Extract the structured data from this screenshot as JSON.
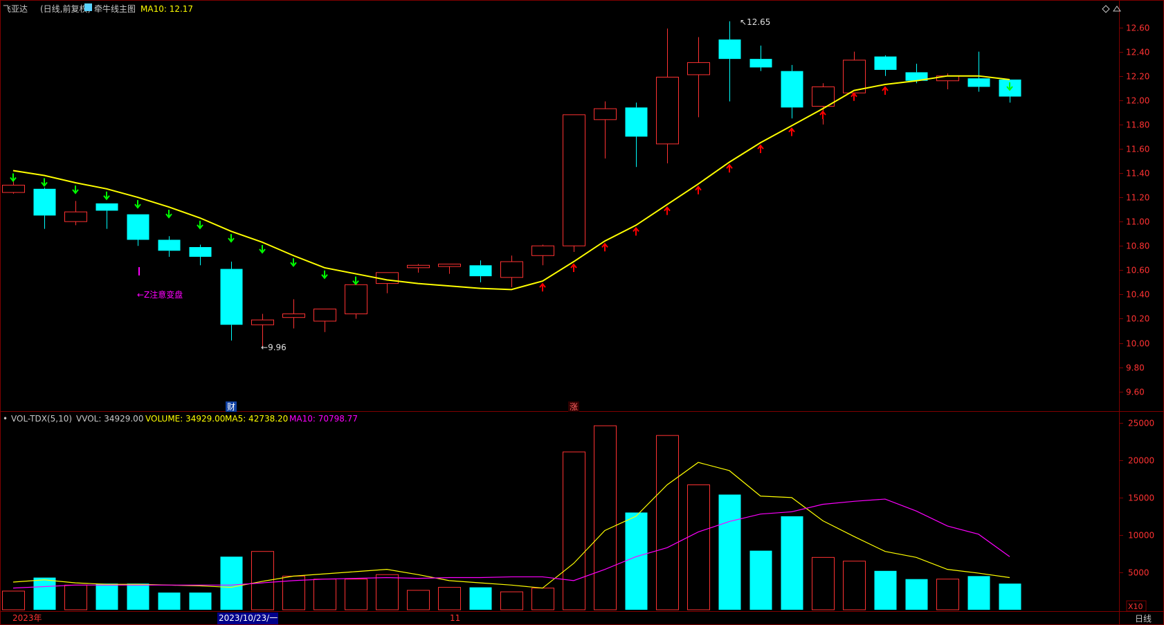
{
  "header": {
    "stock_name": "飞亚达",
    "mode": "(日线,前复权)",
    "indicator_name": "牵牛线主图",
    "ma10_label": "MA10: 12.17"
  },
  "volume_header": {
    "indicator": "VOL-TDX(5,10)",
    "vvol_label": "VVOL: 34929.00",
    "volume_label": "VOLUME: 34929.00",
    "ma5_label": "MA5: 42738.20",
    "ma10_label": "MA10: 70798.77"
  },
  "bottom": {
    "year_label": "2023年",
    "cursor_date": "2023/10/23/一",
    "month_label": "11",
    "period": "日线",
    "x10_label": "X10"
  },
  "annotations": {
    "high_label": "12.65",
    "low_label": "9.96",
    "note_label": "←Z注意变盘",
    "fin_marker": "财",
    "rise_marker": "涨"
  },
  "colors": {
    "up": "#ff3232",
    "down": "#00ffff",
    "ma_line": "#ffff00",
    "vol_ma5": "#ffff00",
    "vol_ma10": "#ff00ff",
    "grid": "#800000",
    "axis_text": "#ff3232",
    "arrow_down": "#00ff00",
    "arrow_up": "#ff0000",
    "note": "#ff00ff"
  },
  "chart_data": [
    {
      "type": "candlestick",
      "title": "牵牛线主图",
      "y_ticks": [
        9.6,
        9.8,
        10.0,
        10.2,
        10.4,
        10.6,
        10.8,
        11.0,
        11.2,
        11.4,
        11.6,
        11.8,
        12.0,
        12.2,
        12.4,
        12.6
      ],
      "ylim": [
        9.45,
        12.7
      ],
      "candles": [
        {
          "o": 11.24,
          "c": 11.3,
          "h": 11.33,
          "l": 11.23
        },
        {
          "o": 11.27,
          "c": 11.05,
          "h": 11.28,
          "l": 10.94
        },
        {
          "o": 11.0,
          "c": 11.08,
          "h": 11.17,
          "l": 10.97
        },
        {
          "o": 11.15,
          "c": 11.09,
          "h": 11.15,
          "l": 10.94
        },
        {
          "o": 11.06,
          "c": 10.85,
          "h": 11.06,
          "l": 10.8
        },
        {
          "o": 10.85,
          "c": 10.76,
          "h": 10.88,
          "l": 10.71
        },
        {
          "o": 10.79,
          "c": 10.71,
          "h": 10.81,
          "l": 10.64
        },
        {
          "o": 10.61,
          "c": 10.15,
          "h": 10.67,
          "l": 10.02
        },
        {
          "o": 10.15,
          "c": 10.19,
          "h": 10.24,
          "l": 9.96
        },
        {
          "o": 10.21,
          "c": 10.24,
          "h": 10.36,
          "l": 10.12
        },
        {
          "o": 10.18,
          "c": 10.28,
          "h": 10.28,
          "l": 10.09
        },
        {
          "o": 10.24,
          "c": 10.48,
          "h": 10.48,
          "l": 10.2
        },
        {
          "o": 10.49,
          "c": 10.58,
          "h": 10.58,
          "l": 10.41
        },
        {
          "o": 10.62,
          "c": 10.64,
          "h": 10.65,
          "l": 10.58
        },
        {
          "o": 10.63,
          "c": 10.65,
          "h": 10.65,
          "l": 10.57
        },
        {
          "o": 10.64,
          "c": 10.55,
          "h": 10.68,
          "l": 10.5
        },
        {
          "o": 10.54,
          "c": 10.67,
          "h": 10.72,
          "l": 10.46
        },
        {
          "o": 10.72,
          "c": 10.8,
          "h": 10.81,
          "l": 10.64
        },
        {
          "o": 10.8,
          "c": 11.88,
          "h": 11.88,
          "l": 10.75
        },
        {
          "o": 11.84,
          "c": 11.93,
          "h": 11.99,
          "l": 11.52
        },
        {
          "o": 11.94,
          "c": 11.7,
          "h": 11.98,
          "l": 11.45
        },
        {
          "o": 11.64,
          "c": 12.19,
          "h": 12.59,
          "l": 11.48
        },
        {
          "o": 12.21,
          "c": 12.31,
          "h": 12.52,
          "l": 11.86
        },
        {
          "o": 12.5,
          "c": 12.34,
          "h": 12.65,
          "l": 11.99
        },
        {
          "o": 12.34,
          "c": 12.27,
          "h": 12.45,
          "l": 12.24
        },
        {
          "o": 12.24,
          "c": 11.94,
          "h": 12.29,
          "l": 11.85
        },
        {
          "o": 11.95,
          "c": 12.11,
          "h": 12.14,
          "l": 11.8
        },
        {
          "o": 12.06,
          "c": 12.33,
          "h": 12.4,
          "l": 12.03
        },
        {
          "o": 12.36,
          "c": 12.25,
          "h": 12.37,
          "l": 12.2
        },
        {
          "o": 12.23,
          "c": 12.16,
          "h": 12.3,
          "l": 12.14
        },
        {
          "o": 12.16,
          "c": 12.2,
          "h": 12.22,
          "l": 12.09
        },
        {
          "o": 12.18,
          "c": 12.11,
          "h": 12.4,
          "l": 12.07
        },
        {
          "o": 12.17,
          "c": 12.03,
          "h": 12.17,
          "l": 11.98
        }
      ],
      "ma10": [
        11.42,
        11.38,
        11.32,
        11.27,
        11.2,
        11.12,
        11.03,
        10.92,
        10.83,
        10.72,
        10.62,
        10.57,
        10.52,
        10.49,
        10.47,
        10.45,
        10.44,
        10.51,
        10.67,
        10.84,
        10.97,
        11.14,
        11.31,
        11.49,
        11.65,
        11.79,
        11.93,
        12.08,
        12.13,
        12.16,
        12.2,
        12.2,
        12.17
      ],
      "signals": [
        "down",
        "down",
        "down",
        "down",
        "down",
        "down",
        "down",
        "down",
        "down",
        "down",
        "down",
        "down",
        "none",
        "none",
        "none",
        "none",
        "none",
        "up",
        "up",
        "up",
        "up",
        "up",
        "up",
        "up",
        "up",
        "up",
        "up",
        "up",
        "up",
        "none",
        "none",
        "none",
        "down"
      ]
    },
    {
      "type": "bar",
      "title": "VOL-TDX(5,10)",
      "y_ticks": [
        5000,
        10000,
        15000,
        20000,
        25000
      ],
      "ylim": [
        0,
        26000
      ],
      "volumes": [
        2500,
        4300,
        3300,
        3500,
        3500,
        2300,
        2300,
        7100,
        7800,
        4500,
        4100,
        4100,
        4700,
        2600,
        3000,
        3000,
        2400,
        2900,
        21100,
        24600,
        13000,
        23300,
        16700,
        15400,
        7900,
        12500,
        7000,
        6500,
        5200,
        4100,
        4100,
        4500,
        3500
      ],
      "ma5": [
        3700,
        4000,
        3600,
        3400,
        3400,
        3300,
        3200,
        3000,
        3800,
        4500,
        4800,
        5100,
        5400,
        4700,
        3900,
        3600,
        3300,
        2900,
        6200,
        10600,
        12500,
        16700,
        19700,
        18600,
        15200,
        15000,
        11900,
        9800,
        7800,
        7000,
        5400,
        4900,
        4300
      ],
      "ma10": [
        2900,
        3100,
        3300,
        3300,
        3300,
        3300,
        3300,
        3300,
        3600,
        3900,
        4100,
        4200,
        4300,
        4200,
        4300,
        4300,
        4400,
        4400,
        3900,
        5400,
        7100,
        8300,
        10400,
        11800,
        12800,
        13100,
        14100,
        14500,
        14800,
        13200,
        11200,
        10100,
        7100
      ],
      "colors": [
        "up",
        "down",
        "up",
        "down",
        "down",
        "down",
        "down",
        "down",
        "up",
        "up",
        "up",
        "up",
        "up",
        "up",
        "up",
        "down",
        "up",
        "up",
        "up",
        "up",
        "down",
        "up",
        "up",
        "down",
        "down",
        "down",
        "up",
        "up",
        "down",
        "down",
        "up",
        "down",
        "down"
      ]
    }
  ]
}
